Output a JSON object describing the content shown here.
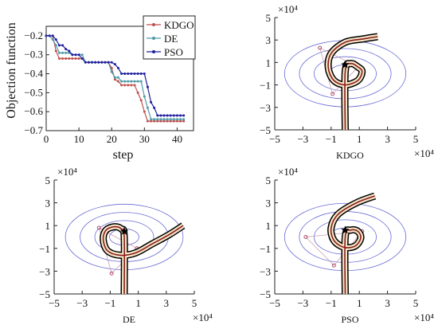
{
  "chart_data": [
    {
      "type": "line",
      "xlabel": "step",
      "ylabel": "Objection function",
      "xlim": [
        0,
        45
      ],
      "ylim": [
        -0.7,
        -0.15
      ],
      "xticks": [
        0,
        10,
        20,
        30,
        40
      ],
      "yticks": [
        -0.2,
        -0.3,
        -0.4,
        -0.5,
        -0.6,
        -0.7
      ],
      "legend_position": "top-right",
      "series": [
        {
          "name": "KDGO",
          "color": "#c0504d",
          "x": [
            0,
            1,
            2,
            3,
            4,
            5,
            6,
            7,
            8,
            9,
            10,
            11,
            12,
            13,
            14,
            15,
            16,
            17,
            18,
            19,
            20,
            21,
            22,
            23,
            24,
            25,
            26,
            27,
            28,
            29,
            30,
            31,
            32,
            33,
            34,
            35,
            36,
            37,
            38,
            39,
            40,
            41,
            42
          ],
          "y": [
            -0.2,
            -0.2,
            -0.2,
            -0.28,
            -0.32,
            -0.32,
            -0.32,
            -0.32,
            -0.32,
            -0.32,
            -0.32,
            -0.32,
            -0.34,
            -0.34,
            -0.34,
            -0.34,
            -0.34,
            -0.34,
            -0.34,
            -0.34,
            -0.37,
            -0.43,
            -0.44,
            -0.46,
            -0.46,
            -0.46,
            -0.46,
            -0.46,
            -0.5,
            -0.54,
            -0.6,
            -0.65,
            -0.65,
            -0.65,
            -0.65,
            -0.65,
            -0.65,
            -0.65,
            -0.65,
            -0.65,
            -0.65,
            -0.65,
            -0.65
          ]
        },
        {
          "name": "DE",
          "color": "#4f9aa8",
          "x": [
            0,
            1,
            2,
            3,
            4,
            5,
            6,
            7,
            8,
            9,
            10,
            11,
            12,
            13,
            14,
            15,
            16,
            17,
            18,
            19,
            20,
            21,
            22,
            23,
            24,
            25,
            26,
            27,
            28,
            29,
            30,
            31,
            32,
            33,
            34,
            35,
            36,
            37,
            38,
            39,
            40,
            41,
            42
          ],
          "y": [
            -0.2,
            -0.2,
            -0.22,
            -0.25,
            -0.29,
            -0.29,
            -0.29,
            -0.29,
            -0.3,
            -0.3,
            -0.3,
            -0.3,
            -0.34,
            -0.34,
            -0.34,
            -0.34,
            -0.34,
            -0.34,
            -0.34,
            -0.34,
            -0.39,
            -0.42,
            -0.42,
            -0.44,
            -0.44,
            -0.44,
            -0.44,
            -0.44,
            -0.44,
            -0.44,
            -0.52,
            -0.58,
            -0.64,
            -0.64,
            -0.64,
            -0.64,
            -0.64,
            -0.64,
            -0.64,
            -0.64,
            -0.64,
            -0.64,
            -0.64
          ]
        },
        {
          "name": "PSO",
          "color": "#1f1f9f",
          "x": [
            0,
            1,
            2,
            3,
            4,
            5,
            6,
            7,
            8,
            9,
            10,
            11,
            12,
            13,
            14,
            15,
            16,
            17,
            18,
            19,
            20,
            21,
            22,
            23,
            24,
            25,
            26,
            27,
            28,
            29,
            30,
            31,
            32,
            33,
            34,
            35,
            36,
            37,
            38,
            39,
            40,
            41,
            42
          ],
          "y": [
            -0.2,
            -0.2,
            -0.2,
            -0.22,
            -0.25,
            -0.25,
            -0.27,
            -0.28,
            -0.3,
            -0.3,
            -0.3,
            -0.32,
            -0.34,
            -0.34,
            -0.34,
            -0.34,
            -0.34,
            -0.34,
            -0.34,
            -0.34,
            -0.34,
            -0.35,
            -0.37,
            -0.4,
            -0.4,
            -0.4,
            -0.4,
            -0.4,
            -0.4,
            -0.4,
            -0.4,
            -0.47,
            -0.55,
            -0.58,
            -0.62,
            -0.62,
            -0.62,
            -0.62,
            -0.62,
            -0.62,
            -0.62,
            -0.62,
            -0.62
          ]
        }
      ]
    },
    {
      "type": "line",
      "panel": "KDGO",
      "xlabel": "KDGO",
      "x_exponent": "×10⁴",
      "y_exponent": "×10⁴",
      "xlim": [
        -5,
        5
      ],
      "ylim": [
        -5,
        5
      ],
      "xticks": [
        -5,
        -3,
        -1,
        1,
        3,
        5
      ],
      "yticks": [
        5,
        3,
        1,
        -1,
        -3,
        -5
      ],
      "contour_radii": [
        1.1,
        2.1,
        3.1,
        4.1
      ],
      "target": [
        0,
        0.8
      ],
      "waypoints": [
        [
          -1.8,
          2.3
        ],
        [
          -0.9,
          -1.8
        ],
        [
          0.9,
          0.6
        ]
      ],
      "path_color": "#8b1a1a",
      "path": [
        [
          0,
          -5
        ],
        [
          0,
          0.2
        ],
        [
          0.4,
          0.9
        ],
        [
          0.9,
          0.6
        ],
        [
          1.2,
          0.2
        ],
        [
          0.9,
          -0.6
        ],
        [
          0,
          -1.0
        ],
        [
          -0.8,
          -0.6
        ],
        [
          -1.2,
          0.5
        ],
        [
          -1.0,
          1.8
        ],
        [
          0,
          2.8
        ],
        [
          1.3,
          3.1
        ],
        [
          2.3,
          3.3
        ]
      ]
    },
    {
      "type": "line",
      "panel": "DE",
      "xlabel": "DE",
      "x_exponent": "×10⁴",
      "y_exponent": "×10⁴",
      "xlim": [
        -5,
        5
      ],
      "ylim": [
        -5,
        5
      ],
      "xticks": [
        -5,
        -3,
        -1,
        1,
        3,
        5
      ],
      "yticks": [
        5,
        3,
        1,
        -1,
        -3,
        -5
      ],
      "contour_radii": [
        1.0,
        2.0,
        3.0,
        4.0
      ],
      "target": [
        0,
        0.5
      ],
      "waypoints": [
        [
          -1.8,
          0.8
        ],
        [
          -0.9,
          -3.2
        ],
        [
          0.9,
          -1.0
        ]
      ],
      "path_color": "#8b1a1a",
      "path": [
        [
          0,
          -5
        ],
        [
          0,
          0
        ],
        [
          -0.2,
          0.7
        ],
        [
          -0.7,
          0.9
        ],
        [
          -1.3,
          0.6
        ],
        [
          -1.5,
          -0.2
        ],
        [
          -1.2,
          -1.2
        ],
        [
          -0.3,
          -1.6
        ],
        [
          0.8,
          -1.4
        ],
        [
          2.0,
          -0.6
        ],
        [
          3.2,
          0.2
        ],
        [
          4.2,
          1.0
        ]
      ]
    },
    {
      "type": "line",
      "panel": "PSO",
      "xlabel": "PSO",
      "x_exponent": "×10⁴",
      "y_exponent": "×10⁴",
      "xlim": [
        -5,
        5
      ],
      "ylim": [
        -5,
        5
      ],
      "xticks": [
        -5,
        -3,
        -1,
        1,
        3,
        5
      ],
      "yticks": [
        5,
        3,
        1,
        -1,
        -3,
        -5
      ],
      "contour_radii": [
        1.1,
        2.1,
        3.1,
        4.1
      ],
      "target": [
        0,
        0.6
      ],
      "waypoints": [
        [
          -2.8,
          0
        ],
        [
          -0.8,
          -2.5
        ],
        [
          1.2,
          0.5
        ]
      ],
      "path_color": "#8b1a1a",
      "path": [
        [
          0,
          -5
        ],
        [
          0,
          0
        ],
        [
          0.4,
          0.6
        ],
        [
          0.9,
          0.5
        ],
        [
          1.1,
          -0.1
        ],
        [
          0.7,
          -0.8
        ],
        [
          -0.1,
          -0.9
        ],
        [
          -0.8,
          -0.3
        ],
        [
          -1.0,
          0.8
        ],
        [
          -0.5,
          2.0
        ],
        [
          0.8,
          3.0
        ],
        [
          2.1,
          3.6
        ]
      ]
    }
  ]
}
